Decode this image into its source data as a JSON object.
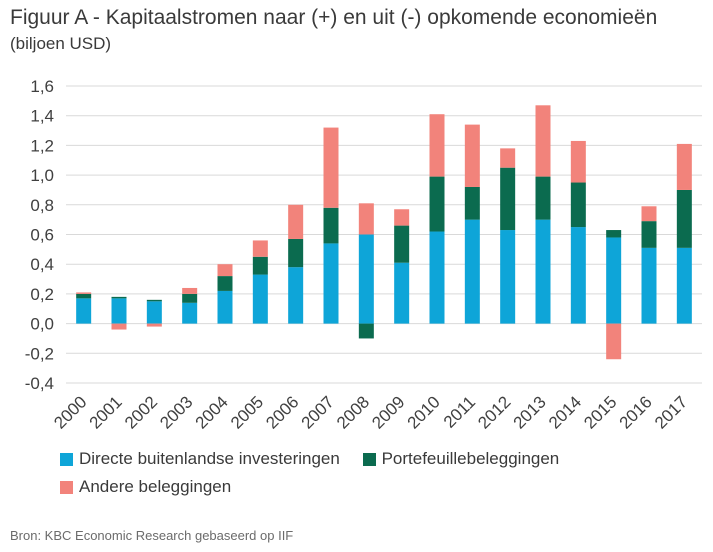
{
  "title": "Figuur A - Kapitaalstromen naar (+) en uit (-) opkomende economieën",
  "subtitle": "(biljoen USD)",
  "source": "Bron: KBC Economic Research gebaseerd op IIF",
  "colors": {
    "fdi": "#0ea5d8",
    "portfolio": "#0b6b4f",
    "other": "#f2837b",
    "grid": "#d9d9d9",
    "axis_text": "#404040"
  },
  "chart_data": {
    "type": "bar",
    "stacked": true,
    "categories": [
      "2000",
      "2001",
      "2002",
      "2003",
      "2004",
      "2005",
      "2006",
      "2007",
      "2008",
      "2009",
      "2010",
      "2011",
      "2012",
      "2013",
      "2014",
      "2015",
      "2016",
      "2017"
    ],
    "series": [
      {
        "name": "Directe buitenlandse investeringen",
        "color_key": "fdi",
        "values": [
          0.17,
          0.17,
          0.15,
          0.14,
          0.22,
          0.33,
          0.38,
          0.54,
          0.6,
          0.41,
          0.62,
          0.7,
          0.63,
          0.7,
          0.65,
          0.58,
          0.51,
          0.51
        ]
      },
      {
        "name": "Portefeuillebeleggingen",
        "color_key": "portfolio",
        "values": [
          0.03,
          0.01,
          0.01,
          0.06,
          0.1,
          0.12,
          0.19,
          0.24,
          -0.1,
          0.25,
          0.37,
          0.22,
          0.42,
          0.29,
          0.3,
          0.05,
          0.18,
          0.39
        ]
      },
      {
        "name": "Andere beleggingen",
        "color_key": "other",
        "values": [
          0.01,
          -0.04,
          -0.02,
          0.04,
          0.08,
          0.11,
          0.23,
          0.54,
          0.21,
          0.11,
          0.42,
          0.42,
          0.13,
          0.48,
          0.28,
          -0.24,
          0.1,
          0.31
        ]
      }
    ],
    "ylim": [
      -0.4,
      1.6
    ],
    "yticks": [
      "-0,4",
      "-0,2",
      "0,0",
      "0,2",
      "0,4",
      "0,6",
      "0,8",
      "1,0",
      "1,2",
      "1,4",
      "1,6"
    ],
    "ytick_values": [
      -0.4,
      -0.2,
      0.0,
      0.2,
      0.4,
      0.6,
      0.8,
      1.0,
      1.2,
      1.4,
      1.6
    ],
    "grid": true,
    "legend_position": "bottom",
    "xlabel": "",
    "ylabel": ""
  }
}
